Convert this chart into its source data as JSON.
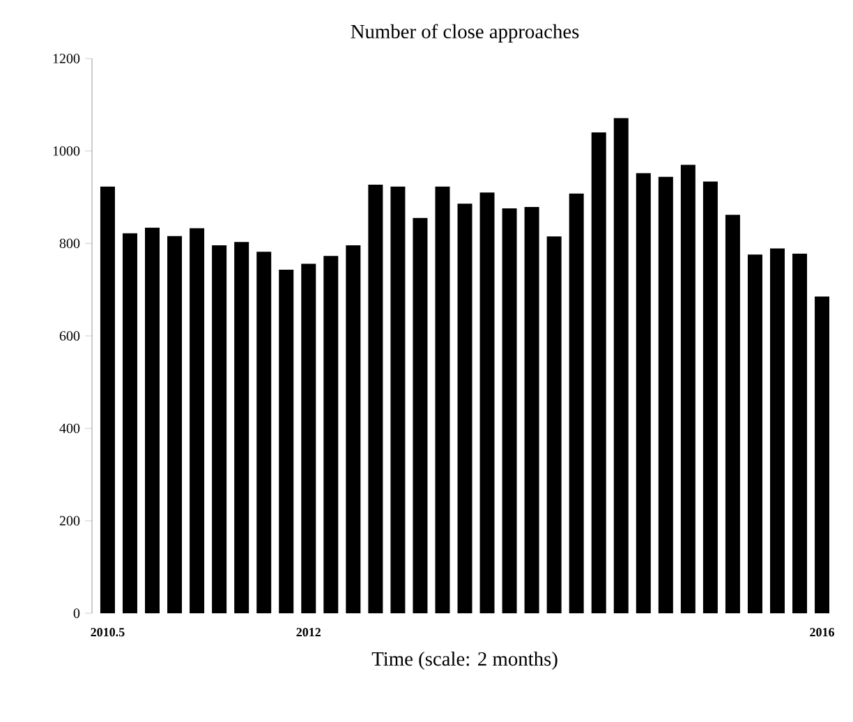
{
  "chart_data": {
    "type": "bar",
    "title": "Number of close approaches",
    "xlabel": "Time (scale: 2 months)",
    "categories": [
      "2010.5",
      null,
      null,
      null,
      null,
      null,
      null,
      null,
      null,
      "2012",
      null,
      null,
      null,
      null,
      null,
      null,
      null,
      null,
      null,
      null,
      null,
      null,
      null,
      null,
      null,
      null,
      null,
      null,
      null,
      null,
      null,
      null,
      "2016"
    ],
    "values": [
      923,
      822,
      834,
      816,
      833,
      796,
      803,
      782,
      743,
      756,
      773,
      796,
      927,
      923,
      855,
      923,
      886,
      910,
      876,
      879,
      815,
      908,
      1040,
      1071,
      952,
      944,
      970,
      934,
      862,
      776,
      789,
      778,
      685
    ],
    "color": "#000000",
    "ylim": [
      0,
      1200
    ],
    "yticks": [
      0,
      200,
      400,
      600,
      800,
      1000,
      1200
    ]
  }
}
